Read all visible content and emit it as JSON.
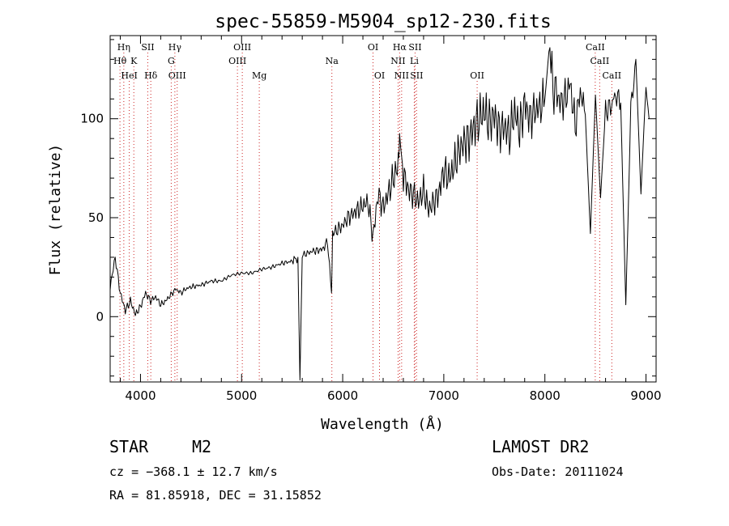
{
  "chart_data": {
    "type": "line",
    "title": "spec-55859-M5904_sp12-230.fits",
    "xlabel": "Wavelength (Å)",
    "ylabel": "Flux (relative)",
    "xlim": [
      3700,
      9100
    ],
    "ylim": [
      -33,
      142
    ],
    "x_ticks": [
      4000,
      5000,
      6000,
      7000,
      8000,
      9000
    ],
    "y_ticks": [
      0,
      50,
      100
    ],
    "grid": false,
    "series": [
      {
        "color": "#000000",
        "x": [
          3700,
          3750,
          3800,
          3850,
          3900,
          3950,
          4000,
          4050,
          4100,
          4150,
          4200,
          4250,
          4300,
          4350,
          4400,
          4450,
          4500,
          4600,
          4700,
          4800,
          4900,
          5000,
          5100,
          5200,
          5300,
          5400,
          5500,
          5557,
          5577,
          5600,
          5700,
          5800,
          5850,
          5890,
          5900,
          5950,
          6000,
          6050,
          6100,
          6150,
          6200,
          6250,
          6300,
          6350,
          6400,
          6450,
          6500,
          6550,
          6563,
          6600,
          6650,
          6700,
          6750,
          6800,
          6850,
          6900,
          6950,
          7000,
          7050,
          7100,
          7150,
          7200,
          7250,
          7300,
          7350,
          7400,
          7450,
          7500,
          7550,
          7600,
          7650,
          7700,
          7750,
          7800,
          7850,
          7900,
          7950,
          8000,
          8050,
          8080,
          8100,
          8150,
          8200,
          8250,
          8300,
          8350,
          8400,
          8450,
          8500,
          8550,
          8600,
          8650,
          8700,
          8750,
          8800,
          8850,
          8900,
          8950,
          9000,
          9030
        ],
        "y": [
          15,
          30,
          12,
          3,
          8,
          1,
          5,
          12,
          8,
          10,
          6,
          8,
          11,
          14,
          12,
          14,
          15,
          16,
          18,
          18,
          21,
          22,
          22,
          24,
          25,
          27,
          28,
          30,
          -32,
          31,
          33,
          34,
          38,
          12,
          42,
          44,
          46,
          50,
          52,
          54,
          56,
          58,
          40,
          62,
          55,
          62,
          70,
          76,
          88,
          72,
          64,
          62,
          58,
          64,
          54,
          58,
          62,
          74,
          70,
          76,
          84,
          88,
          90,
          96,
          100,
          104,
          98,
          102,
          94,
          96,
          92,
          104,
          94,
          108,
          100,
          104,
          106,
          110,
          140,
          112,
          116,
          108,
          110,
          118,
          96,
          114,
          102,
          42,
          112,
          60,
          104,
          106,
          112,
          108,
          6,
          104,
          130,
          62,
          118,
          100
        ]
      }
    ],
    "line_markers": [
      {
        "label": "Hη",
        "x": 3835,
        "row": 1
      },
      {
        "label": "Hθ",
        "x": 3797,
        "row": 2
      },
      {
        "label": "K",
        "x": 3934,
        "row": 2
      },
      {
        "label": "HeI",
        "x": 3889,
        "row": 3
      },
      {
        "label": "SII",
        "x": 4072,
        "row": 1
      },
      {
        "label": "Hδ",
        "x": 4102,
        "row": 3
      },
      {
        "label": "Hγ",
        "x": 4340,
        "row": 1
      },
      {
        "label": "G",
        "x": 4304,
        "row": 2
      },
      {
        "label": "OIII",
        "x": 4363,
        "row": 3
      },
      {
        "label": "OIII",
        "x": 5007,
        "row": 1
      },
      {
        "label": "OIII",
        "x": 4959,
        "row": 2
      },
      {
        "label": "Mg",
        "x": 5175,
        "row": 3
      },
      {
        "label": "Na",
        "x": 5893,
        "row": 2
      },
      {
        "label": "OI",
        "x": 6300,
        "row": 1
      },
      {
        "label": "OI",
        "x": 6364,
        "row": 3
      },
      {
        "label": "Hα",
        "x": 6563,
        "row": 1
      },
      {
        "label": "SII",
        "x": 6716,
        "row": 1
      },
      {
        "label": "NII",
        "x": 6548,
        "row": 2
      },
      {
        "label": "Li",
        "x": 6708,
        "row": 2
      },
      {
        "label": "NII",
        "x": 6583,
        "row": 3
      },
      {
        "label": "SII",
        "x": 6731,
        "row": 3
      },
      {
        "label": "OII",
        "x": 7330,
        "row": 3
      },
      {
        "label": "CaII",
        "x": 8498,
        "row": 1
      },
      {
        "label": "CaII",
        "x": 8542,
        "row": 2
      },
      {
        "label": "CaII",
        "x": 8662,
        "row": 3
      }
    ]
  },
  "info": {
    "object_class": "STAR",
    "subclass": "M2",
    "survey": "LAMOST DR2",
    "redshift_text": "cz = −368.1 ± 12.7 km/s",
    "obs_date_text": "Obs-Date: 20111024",
    "coord_text": "RA =  81.85918, DEC =  31.15852"
  }
}
